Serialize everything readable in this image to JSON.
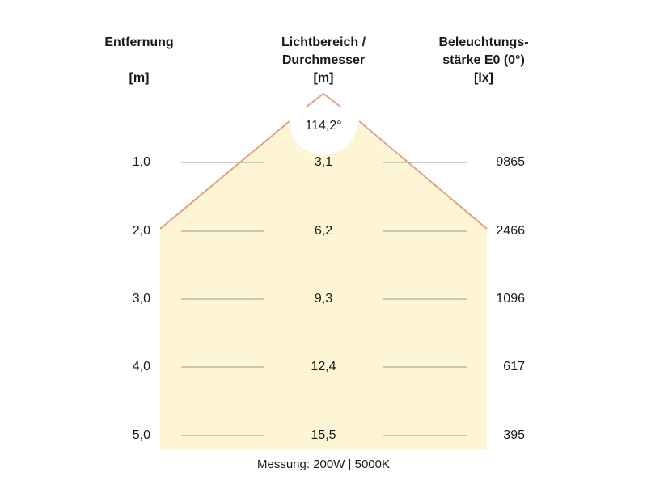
{
  "headers": {
    "distance": {
      "line1": "Entfernung",
      "line2": "",
      "unit": "[m]"
    },
    "diameter": {
      "line1": "Lichtbereich /",
      "line2": "Durchmesser",
      "unit": "[m]"
    },
    "illuminance": {
      "line1": "Beleuchtungs-",
      "line2": "stärke E0 (0°)",
      "unit": "[lx]"
    }
  },
  "beam_angle": "114,2°",
  "rows": [
    {
      "distance": "1,0",
      "diameter": "3,1",
      "lux": "9865"
    },
    {
      "distance": "2,0",
      "diameter": "6,2",
      "lux": "2466"
    },
    {
      "distance": "3,0",
      "diameter": "9,3",
      "lux": "1096"
    },
    {
      "distance": "4,0",
      "diameter": "12,4",
      "lux": "617"
    },
    {
      "distance": "5,0",
      "diameter": "15,5",
      "lux": "395"
    }
  ],
  "footer": "Messung: 200W | 5000K",
  "colors": {
    "light_area": "#fdf5d3",
    "beam_edge": "#e3a07c",
    "grid_line": "#9a9a9a"
  }
}
